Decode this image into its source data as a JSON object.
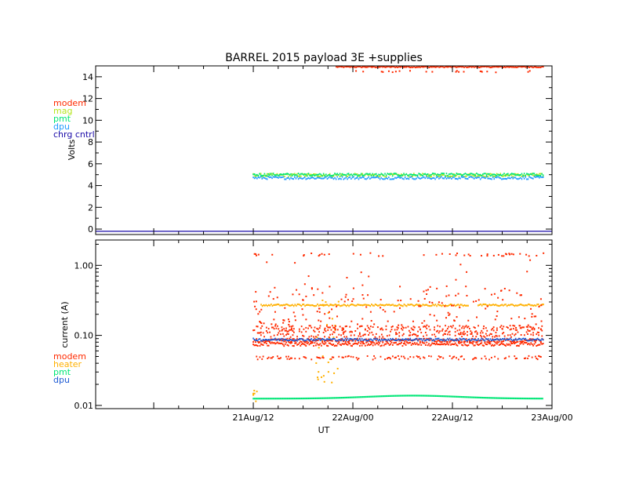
{
  "figure": {
    "title": "BARREL 2015 payload 3E +supplies"
  },
  "chart_data": [
    {
      "type": "scatter",
      "xlabel": "",
      "ylabel": "Volts",
      "ylim": [
        -0.5,
        15
      ],
      "yticks": [
        0,
        2,
        4,
        6,
        8,
        10,
        12,
        14
      ],
      "xlim": [
        "2015-08-20T17:00",
        "2015-08-23T00:00"
      ],
      "grid": false,
      "legend_placement": "left",
      "legend": [
        {
          "label": "modem",
          "color": "#ff2a00"
        },
        {
          "label": "mag",
          "color": "#b5e61d"
        },
        {
          "label": "pmt",
          "color": "#00e676"
        },
        {
          "label": "dpu",
          "color": "#1e9bff"
        },
        {
          "label": "chrg cntrl",
          "color": "#1a0aa8"
        }
      ],
      "series": [
        {
          "name": "modem",
          "x_range": [
            "2015-08-21T22:00",
            "2015-08-22T23:00"
          ],
          "level": 14.9,
          "spread": 0.05,
          "outlier": 14.4,
          "color": "#ff2a00"
        },
        {
          "name": "mag",
          "x_range": [
            "2015-08-21T12:00",
            "2015-08-22T23:00"
          ],
          "level": 4.95,
          "spread": 0.15,
          "color": "#b5e61d"
        },
        {
          "name": "pmt",
          "x_range": [
            "2015-08-21T12:00",
            "2015-08-22T23:00"
          ],
          "level": 5.0,
          "spread": 0.12,
          "color": "#00e676"
        },
        {
          "name": "dpu",
          "x_range": [
            "2015-08-21T12:00",
            "2015-08-22T23:00"
          ],
          "level": 4.7,
          "spread": 0.12,
          "color": "#1e9bff"
        },
        {
          "name": "chrg cntrl",
          "x_range": [
            "2015-08-20T17:00",
            "2015-08-23T00:00"
          ],
          "level": -0.2,
          "spread": 0.0,
          "color": "#1a0aa8"
        }
      ]
    },
    {
      "type": "scatter",
      "xlabel": "UT",
      "ylabel": "current (A)",
      "yscale": "log",
      "ylim": [
        0.009,
        2.3
      ],
      "yticks": [
        0.01,
        0.1,
        1.0
      ],
      "ytick_labels": [
        "0.01",
        "0.10",
        "1.00"
      ],
      "xlim": [
        "2015-08-20T17:00",
        "2015-08-23T00:00"
      ],
      "xticks": [
        "2015-08-21T12:00",
        "2015-08-22T00:00",
        "2015-08-22T12:00",
        "2015-08-23T00:00"
      ],
      "xtick_labels": [
        "21Aug/12",
        "22Aug/00",
        "22Aug/12",
        "23Aug/00"
      ],
      "grid": false,
      "legend_placement": "left",
      "legend": [
        {
          "label": "modem",
          "color": "#ff2a00"
        },
        {
          "label": "heater",
          "color": "#ffb000"
        },
        {
          "label": "pmt",
          "color": "#00e676"
        },
        {
          "label": "dpu",
          "color": "#1e5bd4"
        }
      ],
      "series": [
        {
          "name": "modem",
          "x_range": [
            "2015-08-21T12:00",
            "2015-08-22T23:00"
          ],
          "levels": [
            0.048,
            0.075,
            0.085,
            0.1,
            0.115,
            0.13
          ],
          "sparse": [
            0.15,
            0.3,
            0.5,
            0.8,
            1.4
          ],
          "color": "#ff2a00"
        },
        {
          "name": "heater",
          "x_range": [
            "2015-08-21T12:00",
            "2015-08-22T23:00"
          ],
          "level": 0.27,
          "gaps": [
            [
              "2015-08-22T14:00",
              "2015-08-22T15:00"
            ]
          ],
          "color": "#ffb000"
        },
        {
          "name": "pmt",
          "x_range": [
            "2015-08-21T12:00",
            "2015-08-22T23:00"
          ],
          "level": 0.0125,
          "bump_peak": 0.0138,
          "color": "#00e676"
        },
        {
          "name": "dpu",
          "x_range": [
            "2015-08-21T12:00",
            "2015-08-22T23:00"
          ],
          "level": 0.087,
          "color": "#1e5bd4"
        }
      ]
    }
  ]
}
